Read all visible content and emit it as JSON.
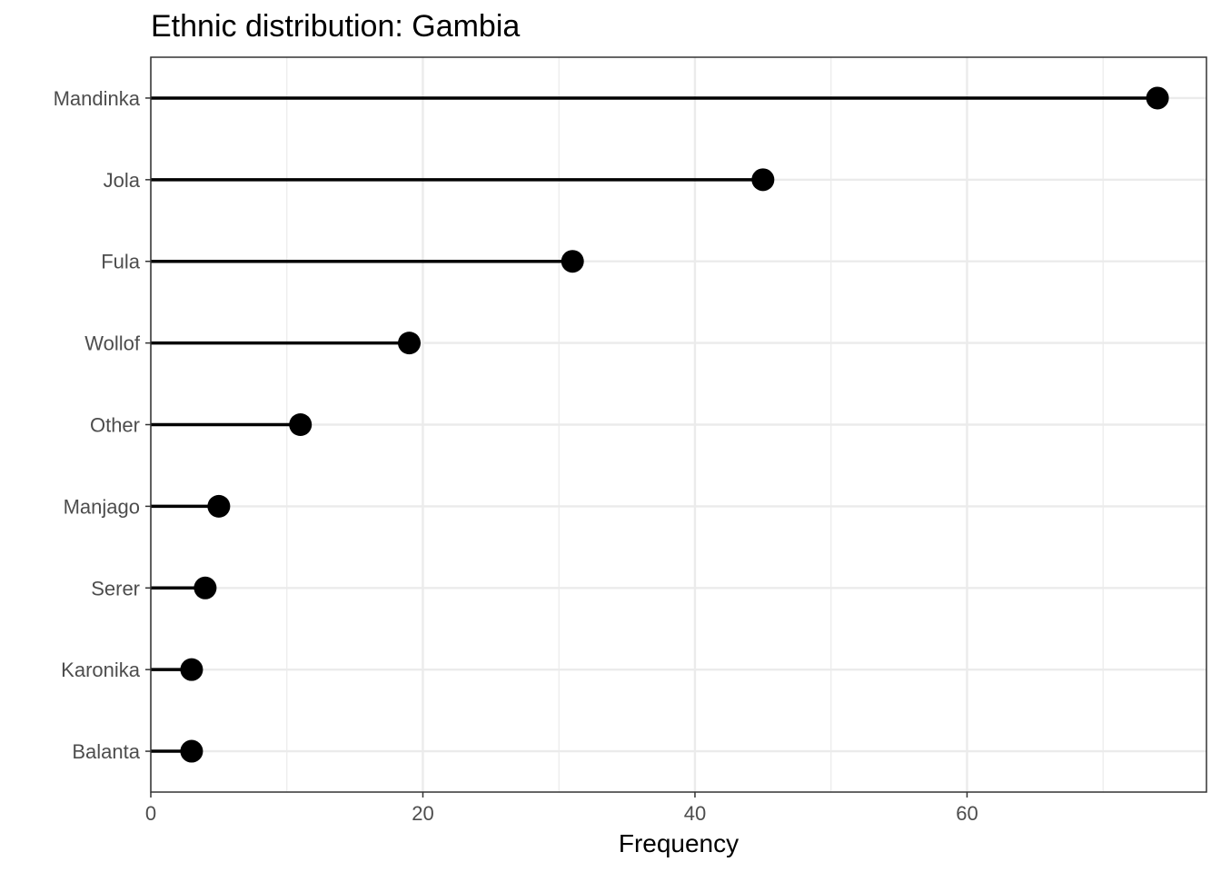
{
  "chart_data": {
    "type": "lollipop",
    "title": "Ethnic distribution: Gambia",
    "xlabel": "Frequency",
    "ylabel": "",
    "xlim": [
      0,
      77.6
    ],
    "x_ticks": [
      0,
      20,
      40,
      60
    ],
    "x_tick_labels": [
      "0",
      "20",
      "40",
      "60"
    ],
    "categories": [
      "Mandinka",
      "Jola",
      "Fula",
      "Wollof",
      "Other",
      "Manjago",
      "Serer",
      "Karonika",
      "Balanta"
    ],
    "values": [
      74,
      45,
      31,
      19,
      11,
      5,
      4,
      3,
      3
    ],
    "grid": true,
    "legend": "none",
    "colors": {
      "marker": "#000000",
      "grid": "#ebebeb",
      "panel_border": "#333333",
      "tick_text": "#4d4d4d"
    }
  }
}
